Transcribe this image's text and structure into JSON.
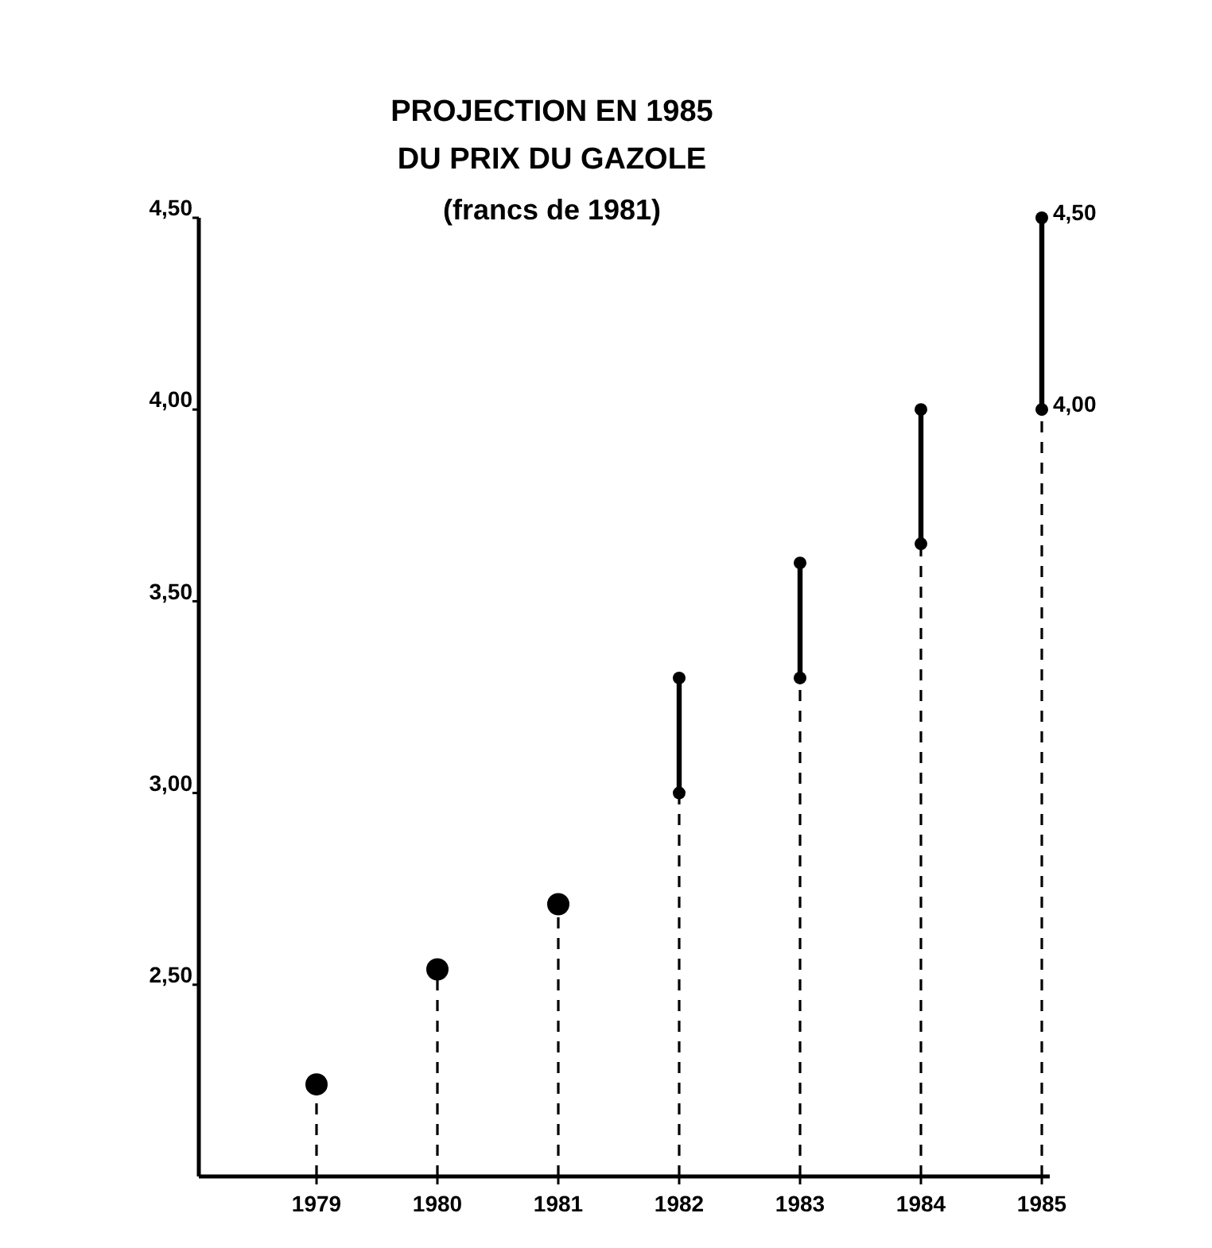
{
  "chart_data": {
    "type": "lollipop",
    "title": "PROJECTION EN 1985\nDU PRIX DU GAZOLE",
    "subtitle": "(francs de 1981)",
    "categories": [
      "1979",
      "1980",
      "1981",
      "1982",
      "1983",
      "1984",
      "1985"
    ],
    "series": [
      {
        "color": "#000000",
        "marker": "circle",
        "line_style": "dashed",
        "values": [
          2.24,
          2.54,
          2.71,
          null,
          null,
          null,
          null
        ]
      },
      {
        "color": "#000000",
        "marker": "circle",
        "line_style": "dashed",
        "values": [
          null,
          null,
          null,
          3.0,
          3.3,
          3.65,
          4.0
        ]
      },
      {
        "type": "bar",
        "color": "#000000",
        "base": [
          null,
          null,
          null,
          3.0,
          3.3,
          3.65,
          4.0
        ],
        "values": [
          null,
          null,
          null,
          0.3,
          0.3,
          0.35,
          0.5
        ]
      },
      {
        "type": "scatter",
        "color": "#000000",
        "marker": "circle",
        "values": [
          null,
          null,
          null,
          3.3,
          3.6,
          4.0,
          4.5
        ]
      }
    ],
    "ylim": [
      2.0,
      4.5
    ],
    "yticks": [
      {
        "value": 2.5,
        "label": "2,50"
      },
      {
        "value": 3.0,
        "label": "3,00"
      },
      {
        "value": 3.5,
        "label": "3,50"
      },
      {
        "value": 4.0,
        "label": "4,00"
      },
      {
        "value": 4.5,
        "label": "4,50"
      }
    ],
    "annotations": [
      {
        "text": "4,50",
        "x": "1985",
        "y": 4.5
      },
      {
        "text": "4,00",
        "x": "1985",
        "y": 4.0
      }
    ]
  }
}
